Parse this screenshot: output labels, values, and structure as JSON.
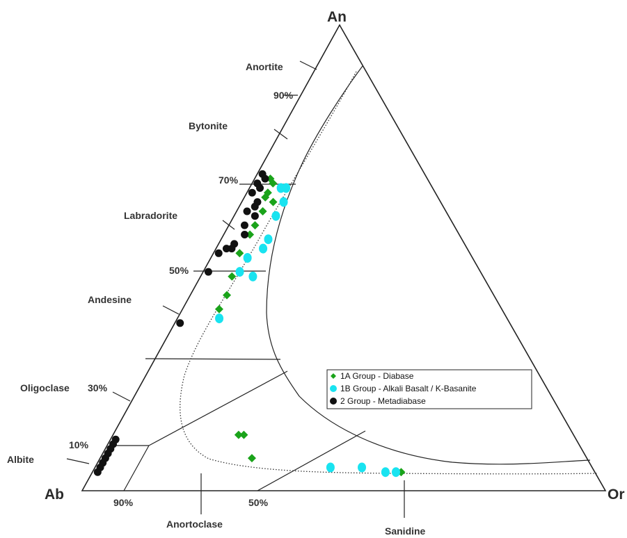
{
  "chart_data": {
    "type": "ternary",
    "apex_labels": {
      "top": "An",
      "left": "Ab",
      "right": "Or"
    },
    "percent_labels": [
      "90%",
      "70%",
      "50%",
      "30%",
      "10%",
      "90%",
      "50%"
    ],
    "mineral_labels": [
      "Anortite",
      "Bytonite",
      "Labradorite",
      "Andesine",
      "Oligoclase",
      "Albite",
      "Anortoclase",
      "Sanidine"
    ],
    "legend": [
      {
        "name": "1A Group - Diabase",
        "color": "#1aa31a",
        "marker": "diamond"
      },
      {
        "name": "1B Group - Alkali Basalt / K-Basanite",
        "color": "#19e3f0",
        "marker": "ellipse"
      },
      {
        "name": "2 Group - Metadiabase",
        "color": "#111111",
        "marker": "circle"
      }
    ],
    "series": [
      {
        "name": "1A Group - Diabase",
        "points": [
          {
            "Ab": 30,
            "An": 67,
            "Or": 3
          },
          {
            "Ab": 30,
            "An": 66,
            "Or": 4
          },
          {
            "Ab": 32,
            "An": 64,
            "Or": 4
          },
          {
            "Ab": 33,
            "An": 63,
            "Or": 4
          },
          {
            "Ab": 32,
            "An": 62,
            "Or": 6
          },
          {
            "Ab": 35,
            "An": 60,
            "Or": 5
          },
          {
            "Ab": 38,
            "An": 57,
            "Or": 5
          },
          {
            "Ab": 40,
            "An": 55,
            "Or": 5
          },
          {
            "Ab": 44,
            "An": 51,
            "Or": 5
          },
          {
            "Ab": 48,
            "An": 46,
            "Or": 6
          },
          {
            "Ab": 51,
            "An": 42,
            "Or": 7
          },
          {
            "Ab": 54,
            "An": 39,
            "Or": 7
          },
          {
            "Ab": 64,
            "An": 12,
            "Or": 24
          },
          {
            "Ab": 63,
            "An": 12,
            "Or": 25
          },
          {
            "Ab": 64,
            "An": 7,
            "Or": 29
          },
          {
            "Ab": 37,
            "An": 4,
            "Or": 59
          }
        ]
      },
      {
        "name": "1B Group - Alkali Basalt / K-Basanite",
        "points": [
          {
            "Ab": 29,
            "An": 65,
            "Or": 6
          },
          {
            "Ab": 28,
            "An": 65,
            "Or": 7
          },
          {
            "Ab": 30,
            "An": 62,
            "Or": 8
          },
          {
            "Ab": 33,
            "An": 59,
            "Or": 8
          },
          {
            "Ab": 37,
            "An": 54,
            "Or": 9
          },
          {
            "Ab": 39,
            "An": 52,
            "Or": 9
          },
          {
            "Ab": 43,
            "An": 50,
            "Or": 7
          },
          {
            "Ab": 46,
            "An": 47,
            "Or": 7
          },
          {
            "Ab": 44,
            "An": 46,
            "Or": 10
          },
          {
            "Ab": 55,
            "An": 37,
            "Or": 8
          },
          {
            "Ab": 50,
            "An": 5,
            "Or": 45
          },
          {
            "Ab": 44,
            "An": 5,
            "Or": 51
          },
          {
            "Ab": 40,
            "An": 4,
            "Or": 56
          },
          {
            "Ab": 38,
            "An": 4,
            "Or": 58
          }
        ]
      },
      {
        "name": "2 Group - Metadiabase",
        "points": [
          {
            "Ab": 31,
            "An": 68,
            "Or": 1
          },
          {
            "Ab": 31,
            "An": 67,
            "Or": 2
          },
          {
            "Ab": 33,
            "An": 66,
            "Or": 1
          },
          {
            "Ab": 33,
            "An": 65,
            "Or": 2
          },
          {
            "Ab": 35,
            "An": 64,
            "Or": 1
          },
          {
            "Ab": 35,
            "An": 62,
            "Or": 3
          },
          {
            "Ab": 36,
            "An": 61,
            "Or": 3
          },
          {
            "Ab": 38,
            "An": 60,
            "Or": 2
          },
          {
            "Ab": 37,
            "An": 59,
            "Or": 4
          },
          {
            "Ab": 40,
            "An": 57,
            "Or": 3
          },
          {
            "Ab": 41,
            "An": 55,
            "Or": 4
          },
          {
            "Ab": 44,
            "An": 53,
            "Or": 3
          },
          {
            "Ab": 45,
            "An": 52,
            "Or": 3
          },
          {
            "Ab": 46,
            "An": 52,
            "Or": 2
          },
          {
            "Ab": 48,
            "An": 51,
            "Or": 1
          },
          {
            "Ab": 52,
            "An": 47,
            "Or": 1
          },
          {
            "Ab": 63,
            "An": 36,
            "Or": 1
          },
          {
            "Ab": 88,
            "An": 11,
            "Or": 1
          },
          {
            "Ab": 89,
            "An": 10,
            "Or": 1
          },
          {
            "Ab": 90,
            "An": 9,
            "Or": 1
          },
          {
            "Ab": 91,
            "An": 8,
            "Or": 1
          },
          {
            "Ab": 92,
            "An": 7,
            "Or": 1
          },
          {
            "Ab": 93,
            "An": 6,
            "Or": 1
          },
          {
            "Ab": 94,
            "An": 5,
            "Or": 1
          },
          {
            "Ab": 95,
            "An": 4,
            "Or": 1
          }
        ]
      }
    ]
  }
}
